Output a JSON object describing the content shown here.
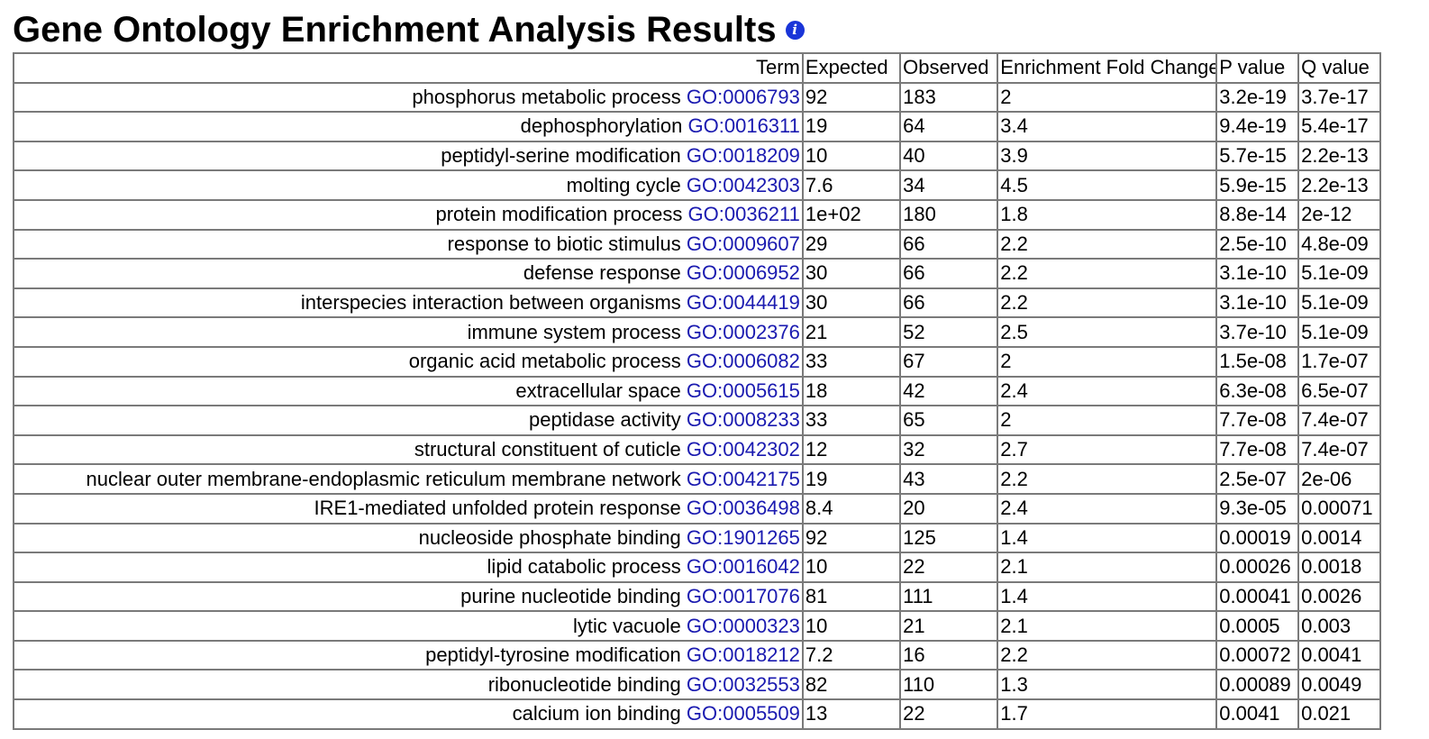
{
  "page": {
    "title": "Gene Ontology Enrichment Analysis Results",
    "info_icon": "i"
  },
  "table": {
    "headers": {
      "term": "Term",
      "expected": "Expected",
      "observed": "Observed",
      "fold": "Enrichment Fold Change",
      "p_value": "P value",
      "q_value": "Q value"
    },
    "rows": [
      {
        "term": "phosphorus metabolic process",
        "go": "GO:0006793",
        "expected": "92",
        "observed": "183",
        "fold": "2",
        "p": "3.2e-19",
        "q": "3.7e-17"
      },
      {
        "term": "dephosphorylation",
        "go": "GO:0016311",
        "expected": "19",
        "observed": "64",
        "fold": "3.4",
        "p": "9.4e-19",
        "q": "5.4e-17"
      },
      {
        "term": "peptidyl-serine modification",
        "go": "GO:0018209",
        "expected": "10",
        "observed": "40",
        "fold": "3.9",
        "p": "5.7e-15",
        "q": "2.2e-13"
      },
      {
        "term": "molting cycle",
        "go": "GO:0042303",
        "expected": "7.6",
        "observed": "34",
        "fold": "4.5",
        "p": "5.9e-15",
        "q": "2.2e-13"
      },
      {
        "term": "protein modification process",
        "go": "GO:0036211",
        "expected": "1e+02",
        "observed": "180",
        "fold": "1.8",
        "p": "8.8e-14",
        "q": "2e-12"
      },
      {
        "term": "response to biotic stimulus",
        "go": "GO:0009607",
        "expected": "29",
        "observed": "66",
        "fold": "2.2",
        "p": "2.5e-10",
        "q": "4.8e-09"
      },
      {
        "term": "defense response",
        "go": "GO:0006952",
        "expected": "30",
        "observed": "66",
        "fold": "2.2",
        "p": "3.1e-10",
        "q": "5.1e-09"
      },
      {
        "term": "interspecies interaction between organisms",
        "go": "GO:0044419",
        "expected": "30",
        "observed": "66",
        "fold": "2.2",
        "p": "3.1e-10",
        "q": "5.1e-09"
      },
      {
        "term": "immune system process",
        "go": "GO:0002376",
        "expected": "21",
        "observed": "52",
        "fold": "2.5",
        "p": "3.7e-10",
        "q": "5.1e-09"
      },
      {
        "term": "organic acid metabolic process",
        "go": "GO:0006082",
        "expected": "33",
        "observed": "67",
        "fold": "2",
        "p": "1.5e-08",
        "q": "1.7e-07"
      },
      {
        "term": "extracellular space",
        "go": "GO:0005615",
        "expected": "18",
        "observed": "42",
        "fold": "2.4",
        "p": "6.3e-08",
        "q": "6.5e-07"
      },
      {
        "term": "peptidase activity",
        "go": "GO:0008233",
        "expected": "33",
        "observed": "65",
        "fold": "2",
        "p": "7.7e-08",
        "q": "7.4e-07"
      },
      {
        "term": "structural constituent of cuticle",
        "go": "GO:0042302",
        "expected": "12",
        "observed": "32",
        "fold": "2.7",
        "p": "7.7e-08",
        "q": "7.4e-07"
      },
      {
        "term": "nuclear outer membrane-endoplasmic reticulum membrane network",
        "go": "GO:0042175",
        "expected": "19",
        "observed": "43",
        "fold": "2.2",
        "p": "2.5e-07",
        "q": "2e-06"
      },
      {
        "term": "IRE1-mediated unfolded protein response",
        "go": "GO:0036498",
        "expected": "8.4",
        "observed": "20",
        "fold": "2.4",
        "p": "9.3e-05",
        "q": "0.00071"
      },
      {
        "term": "nucleoside phosphate binding",
        "go": "GO:1901265",
        "expected": "92",
        "observed": "125",
        "fold": "1.4",
        "p": "0.00019",
        "q": "0.0014"
      },
      {
        "term": "lipid catabolic process",
        "go": "GO:0016042",
        "expected": "10",
        "observed": "22",
        "fold": "2.1",
        "p": "0.00026",
        "q": "0.0018"
      },
      {
        "term": "purine nucleotide binding",
        "go": "GO:0017076",
        "expected": "81",
        "observed": "111",
        "fold": "1.4",
        "p": "0.00041",
        "q": "0.0026"
      },
      {
        "term": "lytic vacuole",
        "go": "GO:0000323",
        "expected": "10",
        "observed": "21",
        "fold": "2.1",
        "p": "0.0005",
        "q": "0.003"
      },
      {
        "term": "peptidyl-tyrosine modification",
        "go": "GO:0018212",
        "expected": "7.2",
        "observed": "16",
        "fold": "2.2",
        "p": "0.00072",
        "q": "0.0041"
      },
      {
        "term": "ribonucleotide binding",
        "go": "GO:0032553",
        "expected": "82",
        "observed": "110",
        "fold": "1.3",
        "p": "0.00089",
        "q": "0.0049"
      },
      {
        "term": "calcium ion binding",
        "go": "GO:0005509",
        "expected": "13",
        "observed": "22",
        "fold": "1.7",
        "p": "0.0041",
        "q": "0.021"
      }
    ]
  },
  "colors": {
    "link": "#1a1ab0",
    "info_icon": "#1a35d8",
    "border": "#7a7a7a"
  },
  "icons": {
    "info": "info-icon"
  }
}
